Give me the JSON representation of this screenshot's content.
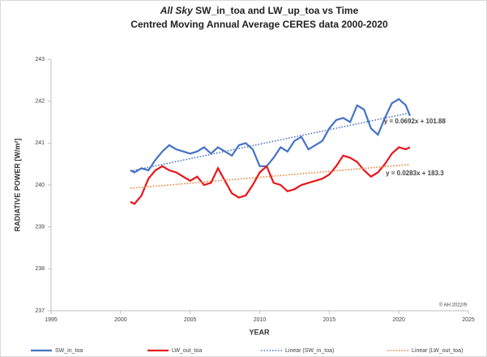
{
  "chart_data": {
    "type": "line",
    "title_italic": "All Sky",
    "title": "SW_in_toa and LW_up_toa vs Time",
    "subtitle": "Centred Moving Annual Average CERES data 2000-2020",
    "x_label": "YEAR",
    "y_label": "RADIATIVE POWER [W/m²]",
    "credit": "© AH 2022/9",
    "xlim": [
      1995,
      2025
    ],
    "xticks": [
      1995,
      2000,
      2005,
      2010,
      2015,
      2020,
      2025
    ],
    "ylim": [
      237,
      243
    ],
    "yticks": [
      237,
      238,
      239,
      240,
      241,
      242,
      243
    ],
    "series": [
      {
        "name": "SW_in_toa",
        "color": "#4472c4",
        "dash": false,
        "x": [
          2000.7,
          2001,
          2001.5,
          2002,
          2002.5,
          2003,
          2003.5,
          2004,
          2004.5,
          2005,
          2005.5,
          2006,
          2006.5,
          2007,
          2007.5,
          2008,
          2008.5,
          2009,
          2009.5,
          2010,
          2010.5,
          2011,
          2011.5,
          2012,
          2012.5,
          2013,
          2013.5,
          2014,
          2014.5,
          2015,
          2015.5,
          2016,
          2016.5,
          2017,
          2017.5,
          2018,
          2018.5,
          2019,
          2019.5,
          2020,
          2020.5,
          2020.8
        ],
        "values": [
          240.35,
          240.3,
          240.4,
          240.35,
          240.6,
          240.8,
          240.95,
          240.85,
          240.8,
          240.75,
          240.8,
          240.9,
          240.75,
          240.9,
          240.8,
          240.7,
          240.95,
          241.0,
          240.85,
          240.45,
          240.45,
          240.65,
          240.9,
          240.8,
          241.05,
          241.15,
          240.85,
          240.95,
          241.05,
          241.35,
          241.55,
          241.6,
          241.5,
          241.9,
          241.8,
          241.35,
          241.2,
          241.6,
          241.95,
          242.05,
          241.9,
          241.65
        ]
      },
      {
        "name": "LW_out_toa",
        "color": "#e8151b",
        "dash": false,
        "x": [
          2000.7,
          2001,
          2001.5,
          2002,
          2002.5,
          2003,
          2003.5,
          2004,
          2004.5,
          2005,
          2005.5,
          2006,
          2006.5,
          2007,
          2007.5,
          2008,
          2008.5,
          2009,
          2009.5,
          2010,
          2010.5,
          2011,
          2011.5,
          2012,
          2012.5,
          2013,
          2013.5,
          2014,
          2014.5,
          2015,
          2015.5,
          2016,
          2016.5,
          2017,
          2017.5,
          2018,
          2018.5,
          2019,
          2019.5,
          2020,
          2020.5,
          2020.8
        ],
        "values": [
          239.6,
          239.55,
          239.75,
          240.15,
          240.35,
          240.45,
          240.35,
          240.3,
          240.2,
          240.1,
          240.2,
          240.0,
          240.05,
          240.4,
          240.1,
          239.8,
          239.7,
          239.75,
          240.0,
          240.3,
          240.45,
          240.05,
          240.0,
          239.85,
          239.9,
          240.0,
          240.05,
          240.1,
          240.15,
          240.25,
          240.45,
          240.7,
          240.65,
          240.55,
          240.35,
          240.2,
          240.3,
          240.5,
          240.75,
          240.9,
          240.85,
          240.9
        ]
      },
      {
        "name": "Linear (SW_in_toa)",
        "color": "#4472c4",
        "dash": true,
        "x": [
          2000.7,
          2020.8
        ],
        "values": [
          240.33,
          241.72
        ],
        "equation": "y = 0.0692x + 101.88"
      },
      {
        "name": "Linear (LW_out_toa)",
        "color": "#ed7d31",
        "dash": true,
        "x": [
          2000.7,
          2020.8
        ],
        "values": [
          239.92,
          240.49
        ],
        "equation": "y = 0.0283x + 183.3",
        "equation_color": "#e8151b"
      }
    ]
  }
}
